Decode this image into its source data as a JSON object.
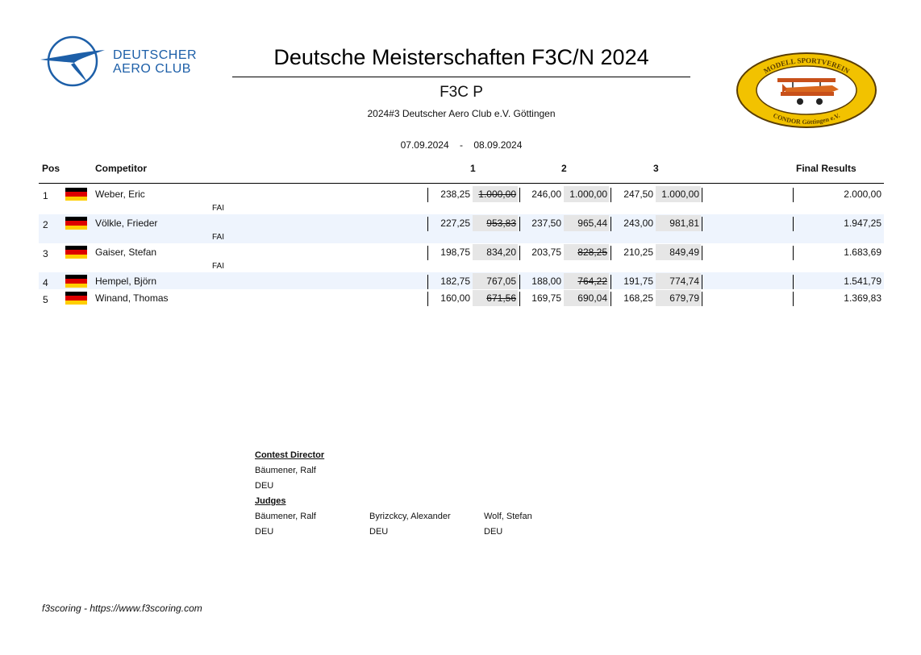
{
  "header": {
    "logo_left_lines": [
      "DEUTSCHER",
      "AERO CLUB"
    ],
    "title": "Deutsche Meisterschaften F3C/N 2024",
    "subtitle": "F3C P",
    "organizer": "2024#3 Deutscher Aero Club e.V. Göttingen",
    "date_from": "07.09.2024",
    "date_sep": "-",
    "date_to": "08.09.2024",
    "logo_right_top": "MODELL SPORTVEREIN",
    "logo_right_bottom": "CONDOR Göttingen e.V."
  },
  "columns": {
    "pos": "Pos",
    "competitor": "Competitor",
    "round1": "1",
    "round2": "2",
    "round3": "3",
    "final": "Final Results"
  },
  "results": [
    {
      "pos": "1",
      "name": "Weber, Eric",
      "class": "FAI",
      "country_flag": "DEU",
      "rounds": [
        {
          "raw": "238,25",
          "norm": "1.000,00",
          "discarded": true
        },
        {
          "raw": "246,00",
          "norm": "1.000,00",
          "discarded": false
        },
        {
          "raw": "247,50",
          "norm": "1.000,00",
          "discarded": false
        }
      ],
      "total": "2.000,00"
    },
    {
      "pos": "2",
      "name": "Völkle, Frieder",
      "class": "FAI",
      "country_flag": "DEU",
      "rounds": [
        {
          "raw": "227,25",
          "norm": "953,83",
          "discarded": true
        },
        {
          "raw": "237,50",
          "norm": "965,44",
          "discarded": false
        },
        {
          "raw": "243,00",
          "norm": "981,81",
          "discarded": false
        }
      ],
      "total": "1.947,25"
    },
    {
      "pos": "3",
      "name": "Gaiser, Stefan",
      "class": "FAI",
      "country_flag": "DEU",
      "rounds": [
        {
          "raw": "198,75",
          "norm": "834,20",
          "discarded": false
        },
        {
          "raw": "203,75",
          "norm": "828,25",
          "discarded": true
        },
        {
          "raw": "210,25",
          "norm": "849,49",
          "discarded": false
        }
      ],
      "total": "1.683,69"
    },
    {
      "pos": "4",
      "name": "Hempel, Björn",
      "class": "",
      "country_flag": "DEU",
      "rounds": [
        {
          "raw": "182,75",
          "norm": "767,05",
          "discarded": false
        },
        {
          "raw": "188,00",
          "norm": "764,22",
          "discarded": true
        },
        {
          "raw": "191,75",
          "norm": "774,74",
          "discarded": false
        }
      ],
      "total": "1.541,79"
    },
    {
      "pos": "5",
      "name": "Winand, Thomas",
      "class": "",
      "country_flag": "DEU",
      "rounds": [
        {
          "raw": "160,00",
          "norm": "671,56",
          "discarded": true
        },
        {
          "raw": "169,75",
          "norm": "690,04",
          "discarded": false
        },
        {
          "raw": "168,25",
          "norm": "679,79",
          "discarded": false
        }
      ],
      "total": "1.369,83"
    }
  ],
  "officials": {
    "contest_director_label": "Contest Director",
    "contest_director": {
      "name": "Bäumener, Ralf",
      "country": "DEU"
    },
    "judges_label": "Judges",
    "judges": [
      {
        "name": "Bäumener, Ralf",
        "country": "DEU"
      },
      {
        "name": "Byrizckcy, Alexander",
        "country": "DEU"
      },
      {
        "name": "Wolf, Stefan",
        "country": "DEU"
      }
    ]
  },
  "footer": "f3scoring - https://www.f3scoring.com",
  "colors": {
    "dac_blue": "#1d5fa8",
    "row_shade": "#eef4fd",
    "score_cell": "#e6e6e6",
    "club_logo_yellow": "#f2c200"
  }
}
